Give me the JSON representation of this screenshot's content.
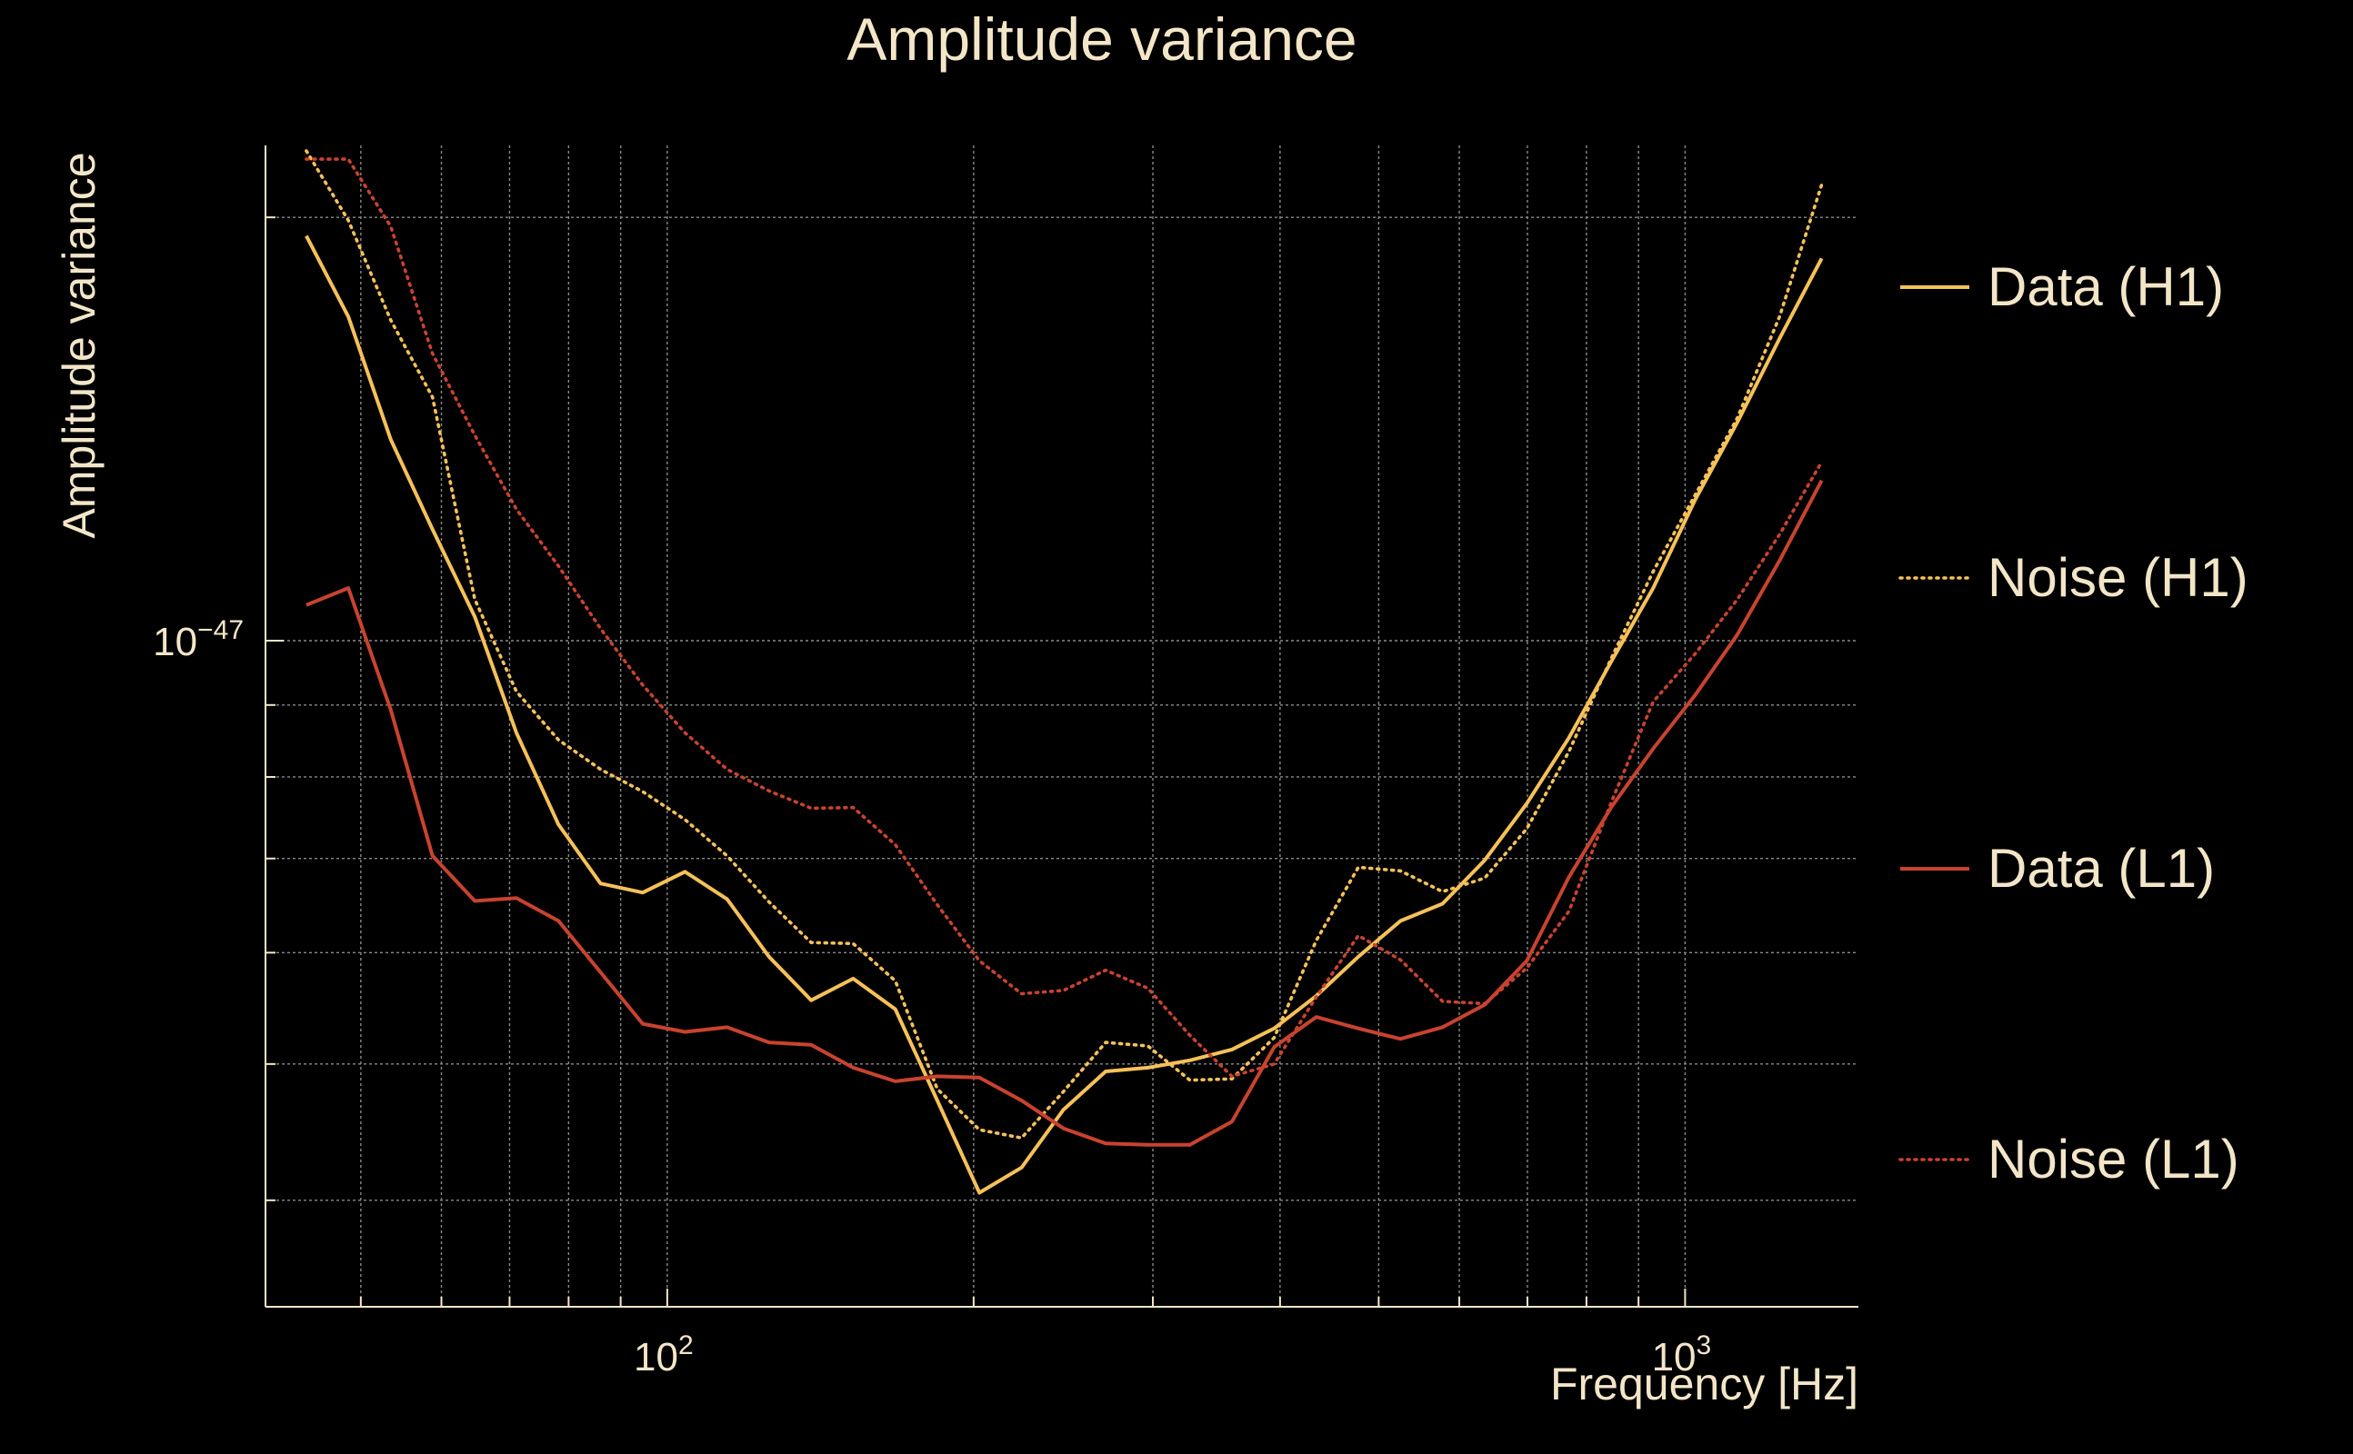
{
  "chart_data": {
    "type": "line",
    "title": "Amplitude variance",
    "xlabel": "Frequency [Hz]",
    "ylabel": "Amplitude variance",
    "xscale": "log",
    "yscale": "log",
    "xlim": [
      40.3,
      1480
    ],
    "ylim": [
      3.36e-48,
      2.25e-47
    ],
    "grid": true,
    "legend_position": "right",
    "x_tick_labels": [
      {
        "value": 100,
        "base": "10",
        "exp": "2"
      },
      {
        "value": 1000,
        "base": "10",
        "exp": "3"
      }
    ],
    "y_tick_labels": [
      {
        "value": 1e-47,
        "base": "10",
        "exp": "−47"
      }
    ],
    "x": [
      44.2,
      48.6,
      53.5,
      58.8,
      64.7,
      71.1,
      78.2,
      86.0,
      94.6,
      104.1,
      114.5,
      125.9,
      138.5,
      152.3,
      167.5,
      184.2,
      202.6,
      222.9,
      245.1,
      269.6,
      296.6,
      326.2,
      358.8,
      394.7,
      434.1,
      477.5,
      525.2,
      577.7,
      635.5,
      699.0,
      768.9,
      845.8,
      930.3,
      1023.3,
      1125.6,
      1238.2,
      1362.0
    ],
    "series": [
      {
        "name": "Data (H1)",
        "color": "#f5c158",
        "dash": "solid",
        "values": [
          1.94e-47,
          1.7e-47,
          1.39e-47,
          1.2e-47,
          1.04e-47,
          8.6e-48,
          7.4e-48,
          6.72e-48,
          6.62e-48,
          6.85e-48,
          6.55e-48,
          5.96e-48,
          5.55e-48,
          5.75e-48,
          5.47e-48,
          4.71e-48,
          4.05e-48,
          4.22e-48,
          4.64e-48,
          4.94e-48,
          4.97e-48,
          5.03e-48,
          5.12e-48,
          5.3e-48,
          5.59e-48,
          5.96e-48,
          6.32e-48,
          6.5e-48,
          6.98e-48,
          7.66e-48,
          8.53e-48,
          9.66e-48,
          1.09e-47,
          1.26e-47,
          1.43e-47,
          1.64e-47,
          1.87e-47
        ]
      },
      {
        "name": "Noise (H1)",
        "color": "#f5c158",
        "dash": "dotted",
        "values": [
          2.23e-47,
          1.99e-47,
          1.69e-47,
          1.49e-47,
          1.07e-47,
          9.2e-48,
          8.5e-48,
          8.1e-48,
          7.81e-48,
          7.46e-48,
          7.03e-48,
          6.52e-48,
          6.1e-48,
          6.09e-48,
          5.73e-48,
          4.8e-48,
          4.49e-48,
          4.43e-48,
          4.78e-48,
          5.18e-48,
          5.15e-48,
          4.87e-48,
          4.88e-48,
          5.22e-48,
          6.12e-48,
          6.9e-48,
          6.86e-48,
          6.63e-48,
          6.78e-48,
          7.35e-48,
          8.34e-48,
          9.71e-48,
          1.12e-47,
          1.27e-47,
          1.44e-47,
          1.7e-47,
          2.11e-47
        ]
      },
      {
        "name": "Data (L1)",
        "color": "#c8432f",
        "dash": "solid",
        "values": [
          1.06e-47,
          1.09e-47,
          8.93e-48,
          7.03e-48,
          6.53e-48,
          6.56e-48,
          6.32e-48,
          5.81e-48,
          5.34e-48,
          5.27e-48,
          5.31e-48,
          5.18e-48,
          5.16e-48,
          4.97e-48,
          4.86e-48,
          4.9e-48,
          4.89e-48,
          4.71e-48,
          4.5e-48,
          4.39e-48,
          4.38e-48,
          4.38e-48,
          4.55e-48,
          5.14e-48,
          5.4e-48,
          5.3e-48,
          5.21e-48,
          5.31e-48,
          5.51e-48,
          5.92e-48,
          6.79e-48,
          7.61e-48,
          8.38e-48,
          9.15e-48,
          1.01e-47,
          1.14e-47,
          1.3e-47
        ]
      },
      {
        "name": "Noise (L1)",
        "color": "#c8432f",
        "dash": "dotted",
        "values": [
          2.2e-47,
          2.2e-47,
          1.97e-47,
          1.6e-47,
          1.4e-47,
          1.24e-47,
          1.13e-47,
          1.02e-47,
          9.3e-48,
          8.6e-48,
          8.1e-48,
          7.82e-48,
          7.6e-48,
          7.61e-48,
          7.16e-48,
          6.49e-48,
          5.92e-48,
          5.61e-48,
          5.64e-48,
          5.83e-48,
          5.66e-48,
          5.24e-48,
          4.9e-48,
          5e-48,
          5.58e-48,
          6.17e-48,
          5.93e-48,
          5.54e-48,
          5.52e-48,
          5.85e-48,
          6.42e-48,
          7.67e-48,
          9.05e-48,
          9.79e-48,
          1.07e-47,
          1.19e-47,
          1.34e-47
        ]
      }
    ]
  }
}
